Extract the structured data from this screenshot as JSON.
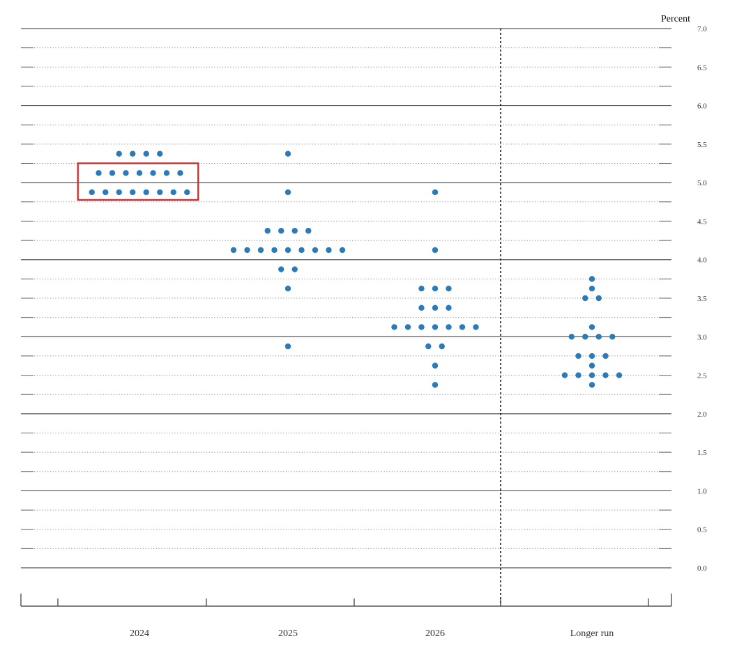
{
  "chart_data": {
    "type": "scatter",
    "ylabel": "Percent",
    "ylim": [
      0.0,
      7.0
    ],
    "yticks": [
      "0.0",
      "0.5",
      "1.0",
      "1.5",
      "2.0",
      "2.5",
      "3.0",
      "3.5",
      "4.0",
      "4.5",
      "5.0",
      "5.5",
      "6.0",
      "6.5",
      "7.0"
    ],
    "categories": [
      "2024",
      "2025",
      "2026",
      "Longer run"
    ],
    "dot_color": "#2b7bb9",
    "highlight_color": "#e02020",
    "highlight": {
      "category": "2024",
      "y_range": [
        4.875,
        5.125
      ]
    },
    "points": [
      {
        "category": "2024",
        "y": 5.375,
        "count": 4
      },
      {
        "category": "2024",
        "y": 5.125,
        "count": 7
      },
      {
        "category": "2024",
        "y": 4.875,
        "count": 8
      },
      {
        "category": "2025",
        "y": 5.375,
        "count": 1
      },
      {
        "category": "2025",
        "y": 4.875,
        "count": 1
      },
      {
        "category": "2025",
        "y": 4.375,
        "count": 4
      },
      {
        "category": "2025",
        "y": 4.125,
        "count": 9
      },
      {
        "category": "2025",
        "y": 3.875,
        "count": 2
      },
      {
        "category": "2025",
        "y": 3.625,
        "count": 1
      },
      {
        "category": "2025",
        "y": 2.875,
        "count": 1
      },
      {
        "category": "2026",
        "y": 4.875,
        "count": 1
      },
      {
        "category": "2026",
        "y": 4.125,
        "count": 1
      },
      {
        "category": "2026",
        "y": 3.625,
        "count": 3
      },
      {
        "category": "2026",
        "y": 3.375,
        "count": 3
      },
      {
        "category": "2026",
        "y": 3.125,
        "count": 7
      },
      {
        "category": "2026",
        "y": 2.875,
        "count": 2
      },
      {
        "category": "2026",
        "y": 2.625,
        "count": 1
      },
      {
        "category": "2026",
        "y": 2.375,
        "count": 1
      },
      {
        "category": "Longer run",
        "y": 3.75,
        "count": 1
      },
      {
        "category": "Longer run",
        "y": 3.625,
        "count": 1
      },
      {
        "category": "Longer run",
        "y": 3.5,
        "count": 2
      },
      {
        "category": "Longer run",
        "y": 3.125,
        "count": 1
      },
      {
        "category": "Longer run",
        "y": 3.0,
        "count": 4
      },
      {
        "category": "Longer run",
        "y": 2.75,
        "count": 3
      },
      {
        "category": "Longer run",
        "y": 2.625,
        "count": 1
      },
      {
        "category": "Longer run",
        "y": 2.5,
        "count": 5
      },
      {
        "category": "Longer run",
        "y": 2.375,
        "count": 1
      }
    ],
    "grid": true,
    "separator_before": "Longer run"
  }
}
